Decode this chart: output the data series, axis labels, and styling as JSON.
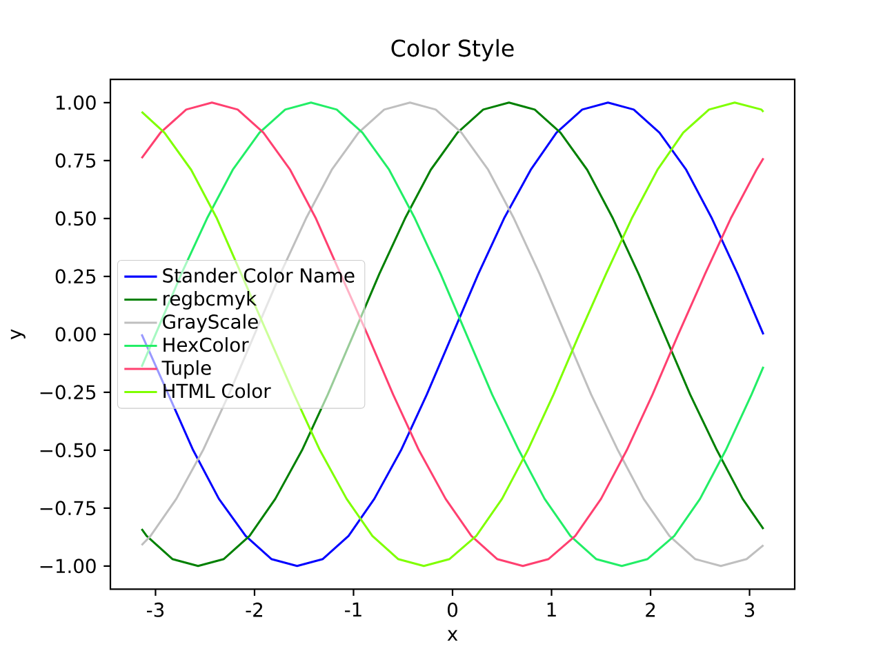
{
  "chart_data": {
    "type": "line",
    "title": "Color Style",
    "xlabel": "x",
    "ylabel": "y",
    "xlim": [
      -3.456,
      3.456
    ],
    "ylim": [
      -1.1,
      1.1
    ],
    "xticks": [
      -3,
      -2,
      -1,
      0,
      1,
      2,
      3
    ],
    "yticks": [
      {
        "value": -1,
        "label": "−1.00"
      },
      {
        "value": -0.75,
        "label": "−0.75"
      },
      {
        "value": -0.5,
        "label": "−0.50"
      },
      {
        "value": -0.25,
        "label": "−0.25"
      },
      {
        "value": 0,
        "label": "0.00"
      },
      {
        "value": 0.25,
        "label": "0.25"
      },
      {
        "value": 0.5,
        "label": "0.50"
      },
      {
        "value": 0.75,
        "label": "0.75"
      },
      {
        "value": 1,
        "label": "1.00"
      }
    ],
    "legend": "center left",
    "marker": "none",
    "series": [
      {
        "name": "Stander Color Name",
        "color": "#0000ff",
        "x": [
          -3.14,
          -2.62,
          -2.36,
          -2.09,
          -1.83,
          -1.57,
          -1.31,
          -1.05,
          -0.79,
          -0.52,
          -0.26,
          0,
          0.26,
          0.52,
          0.79,
          1.05,
          1.31,
          1.57,
          1.83,
          2.09,
          2.36,
          2.62,
          2.88,
          3.14
        ],
        "values": [
          0,
          -0.5,
          -0.71,
          -0.87,
          -0.97,
          -1,
          -0.97,
          -0.87,
          -0.71,
          -0.5,
          -0.26,
          0,
          0.26,
          0.5,
          0.71,
          0.87,
          0.97,
          1,
          0.97,
          0.87,
          0.71,
          0.5,
          0.26,
          0
        ]
      },
      {
        "name": "regbcmyk",
        "color": "#008000",
        "x": [
          -3.14,
          -3.09,
          -2.83,
          -2.57,
          -2.31,
          -2.05,
          -1.79,
          -1.52,
          -1.26,
          -1,
          -0.74,
          -0.48,
          -0.22,
          0.05,
          0.31,
          0.57,
          0.83,
          1.09,
          1.36,
          1.62,
          1.88,
          2.14,
          2.4,
          2.67,
          2.93,
          3.14
        ],
        "values": [
          -0.84,
          -0.87,
          -0.97,
          -1,
          -0.97,
          -0.87,
          -0.71,
          -0.5,
          -0.26,
          0,
          0.26,
          0.5,
          0.71,
          0.87,
          0.97,
          1,
          0.97,
          0.87,
          0.71,
          0.5,
          0.26,
          0,
          -0.26,
          -0.5,
          -0.71,
          -0.84
        ]
      },
      {
        "name": "GrayScale",
        "color": "#bfbfbf",
        "x": [
          -3.14,
          -3.05,
          -2.79,
          -2.52,
          -2.26,
          -2,
          -1.74,
          -1.48,
          -1.22,
          -0.95,
          -0.69,
          -0.43,
          -0.17,
          0.09,
          0.36,
          0.62,
          0.88,
          1.14,
          1.4,
          1.67,
          1.93,
          2.19,
          2.45,
          2.71,
          2.97,
          3.14
        ],
        "values": [
          -0.91,
          -0.87,
          -0.71,
          -0.5,
          -0.26,
          0,
          0.26,
          0.5,
          0.71,
          0.87,
          0.97,
          1,
          0.97,
          0.87,
          0.71,
          0.5,
          0.26,
          0,
          -0.26,
          -0.5,
          -0.71,
          -0.87,
          -0.97,
          -1,
          -0.97,
          -0.91
        ]
      },
      {
        "name": "HexColor",
        "color": "#22ee66",
        "x": [
          -3.14,
          -3,
          -2.74,
          -2.48,
          -2.22,
          -1.95,
          -1.69,
          -1.43,
          -1.17,
          -0.91,
          -0.64,
          -0.38,
          -0.12,
          0.14,
          0.4,
          0.67,
          0.93,
          1.19,
          1.45,
          1.71,
          1.97,
          2.24,
          2.5,
          2.76,
          3.02,
          3.14
        ],
        "values": [
          -0.14,
          0,
          0.26,
          0.5,
          0.71,
          0.87,
          0.97,
          1,
          0.97,
          0.87,
          0.71,
          0.5,
          0.26,
          0,
          -0.26,
          -0.5,
          -0.71,
          -0.87,
          -0.97,
          -1,
          -0.97,
          -0.87,
          -0.71,
          -0.5,
          -0.26,
          -0.14
        ]
      },
      {
        "name": "Tuple",
        "color": "#ff4070",
        "x": [
          -3.14,
          -2.95,
          -2.69,
          -2.43,
          -2.17,
          -1.91,
          -1.64,
          -1.38,
          -0.86,
          -0.6,
          -0.34,
          -0.07,
          0.19,
          0.45,
          0.71,
          0.97,
          1.24,
          1.5,
          1.76,
          2.02,
          2.28,
          2.55,
          2.81,
          3.07,
          3.14
        ],
        "values": [
          0.76,
          0.87,
          0.97,
          1,
          0.97,
          0.87,
          0.71,
          0.5,
          0,
          -0.26,
          -0.5,
          -0.71,
          -0.87,
          -0.97,
          -1,
          -0.97,
          -0.87,
          -0.71,
          -0.5,
          -0.26,
          0,
          0.26,
          0.5,
          0.71,
          0.76
        ]
      },
      {
        "name": "HTML Color",
        "color": "#7fff00",
        "x": [
          -3.14,
          -2.91,
          -2.64,
          -2.38,
          -1.6,
          -1.34,
          -1.07,
          -0.81,
          -0.55,
          -0.29,
          -0.03,
          0.24,
          0.5,
          0.76,
          1.02,
          1.28,
          1.55,
          1.81,
          2.07,
          2.33,
          2.59,
          2.85,
          3.12,
          3.14
        ],
        "values": [
          0.96,
          0.87,
          0.71,
          0.5,
          -0.26,
          -0.5,
          -0.71,
          -0.87,
          -0.97,
          -1,
          -0.97,
          -0.87,
          -0.71,
          -0.5,
          -0.26,
          0,
          0.26,
          0.5,
          0.71,
          0.87,
          0.97,
          1,
          0.97,
          0.96
        ]
      }
    ]
  }
}
